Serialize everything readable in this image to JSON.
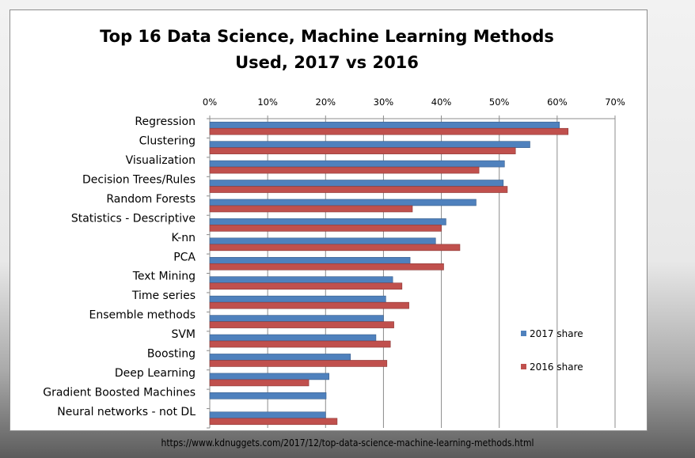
{
  "chart_data": {
    "type": "bar",
    "orientation": "horizontal",
    "title_lines": [
      "Top 16 Data Science, Machine Learning Methods",
      "Used, 2017 vs 2016"
    ],
    "categories": [
      "Regression",
      "Clustering",
      "Visualization",
      "Decision Trees/Rules",
      "Random Forests",
      "Statistics - Descriptive",
      "K-nn",
      "PCA",
      "Text Mining",
      "Time series",
      "Ensemble methods",
      "SVM",
      "Boosting",
      "Deep Learning",
      "Gradient Boosted Machines",
      "Neural networks - not DL"
    ],
    "series": [
      {
        "name": "2017 share",
        "color": "#4f81bd",
        "values": [
          60.4,
          55.3,
          50.9,
          50.7,
          46.0,
          40.8,
          39.0,
          34.6,
          31.6,
          30.4,
          30.0,
          28.7,
          24.3,
          20.6,
          20.1,
          20.0
        ]
      },
      {
        "name": "2016 share",
        "color": "#c0504d",
        "values": [
          61.9,
          52.8,
          46.5,
          51.4,
          35.0,
          40.0,
          43.2,
          40.4,
          33.2,
          34.4,
          31.8,
          31.2,
          30.6,
          17.1,
          0,
          22.0
        ]
      }
    ],
    "x_ticks": [
      "0%",
      "10%",
      "20%",
      "30%",
      "40%",
      "50%",
      "60%",
      "70%"
    ],
    "xlim": [
      0,
      70
    ],
    "x_axis_position": "top",
    "legend_position": "right"
  },
  "source_url": "https://www.kdnuggets.com/2017/12/top-data-science-machine-learning-methods.html"
}
